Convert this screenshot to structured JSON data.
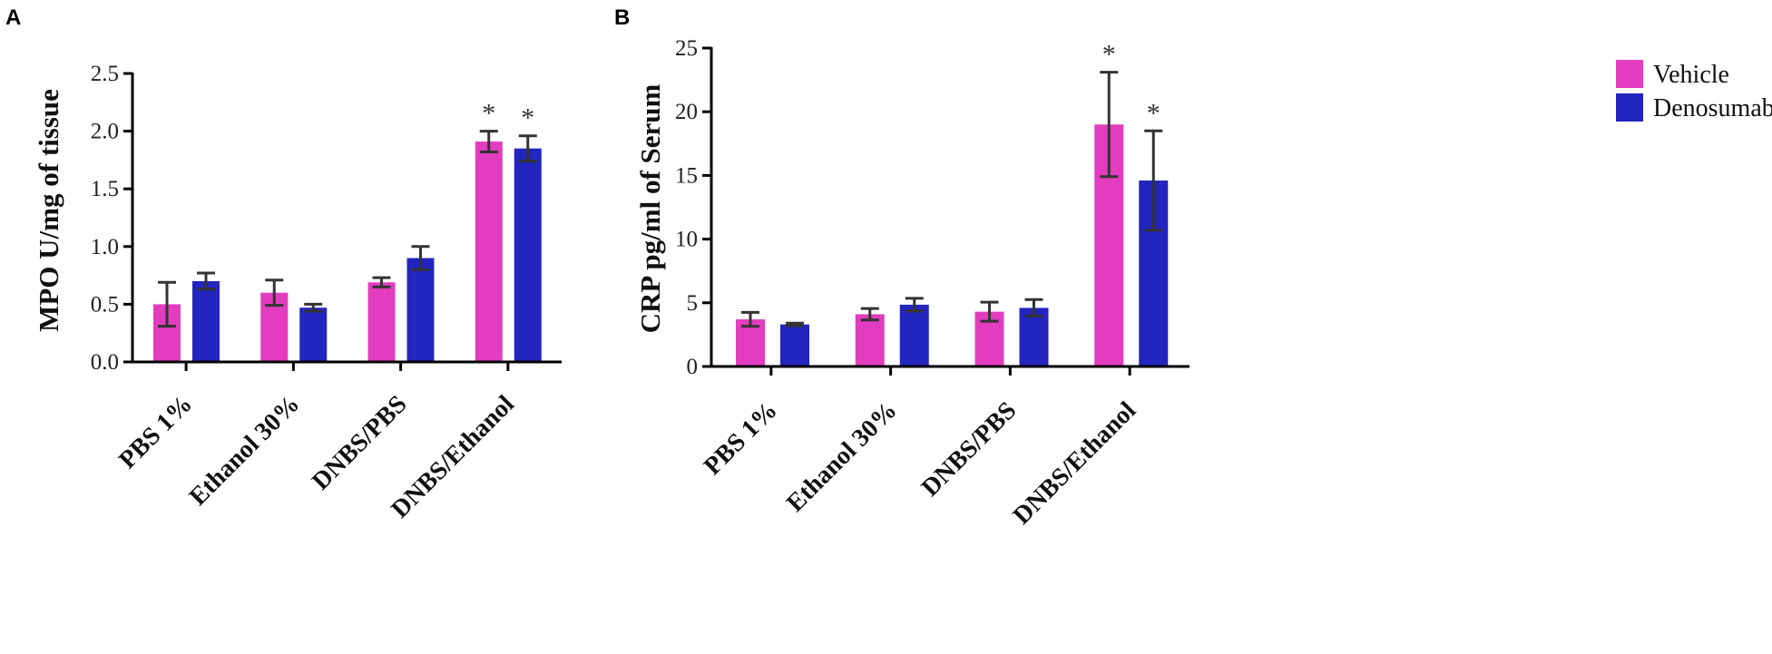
{
  "chart_data": [
    {
      "type": "bar",
      "panel": "A",
      "categories": [
        "PBS 1%",
        "Ethanol 30%",
        "DNBS/PBS",
        "DNBS/Ethanol"
      ],
      "series": [
        {
          "name": "Vehicle",
          "values": [
            0.5,
            0.6,
            0.69,
            1.91
          ],
          "errors": [
            0.19,
            0.11,
            0.04,
            0.09
          ],
          "sig": [
            "",
            "",
            "",
            "*"
          ]
        },
        {
          "name": "Denosumab",
          "values": [
            0.7,
            0.47,
            0.9,
            1.85
          ],
          "errors": [
            0.07,
            0.03,
            0.1,
            0.11
          ],
          "sig": [
            "",
            "",
            "",
            "*"
          ]
        }
      ],
      "title": "",
      "xlabel": "",
      "ylabel": "MPO U/mg of tissue",
      "ylim": [
        0,
        2.5
      ],
      "yticks": [
        "0.0",
        "0.5",
        "1.0",
        "1.5",
        "2.0",
        "2.5"
      ]
    },
    {
      "type": "bar",
      "panel": "B",
      "categories": [
        "PBS 1%",
        "Ethanol 30%",
        "DNBS/PBS",
        "DNBS/Ethanol"
      ],
      "series": [
        {
          "name": "Vehicle",
          "values": [
            3.7,
            4.1,
            4.3,
            19.0
          ],
          "errors": [
            0.55,
            0.45,
            0.75,
            4.1
          ],
          "sig": [
            "",
            "",
            "",
            "*"
          ]
        },
        {
          "name": "Denosumab",
          "values": [
            3.3,
            4.85,
            4.6,
            14.6
          ],
          "errors": [
            0.1,
            0.5,
            0.65,
            3.9
          ],
          "sig": [
            "",
            "",
            "",
            "*"
          ]
        }
      ],
      "title": "",
      "xlabel": "",
      "ylabel": "CRP pg/ml of Serum",
      "ylim": [
        0,
        25
      ],
      "yticks": [
        "0",
        "5",
        "10",
        "15",
        "20",
        "25"
      ]
    }
  ],
  "legend": {
    "position": "top-right",
    "items": [
      {
        "label": "Vehicle",
        "color": "#e23dbe"
      },
      {
        "label": "Denosumab",
        "color": "#2325bf"
      }
    ]
  }
}
